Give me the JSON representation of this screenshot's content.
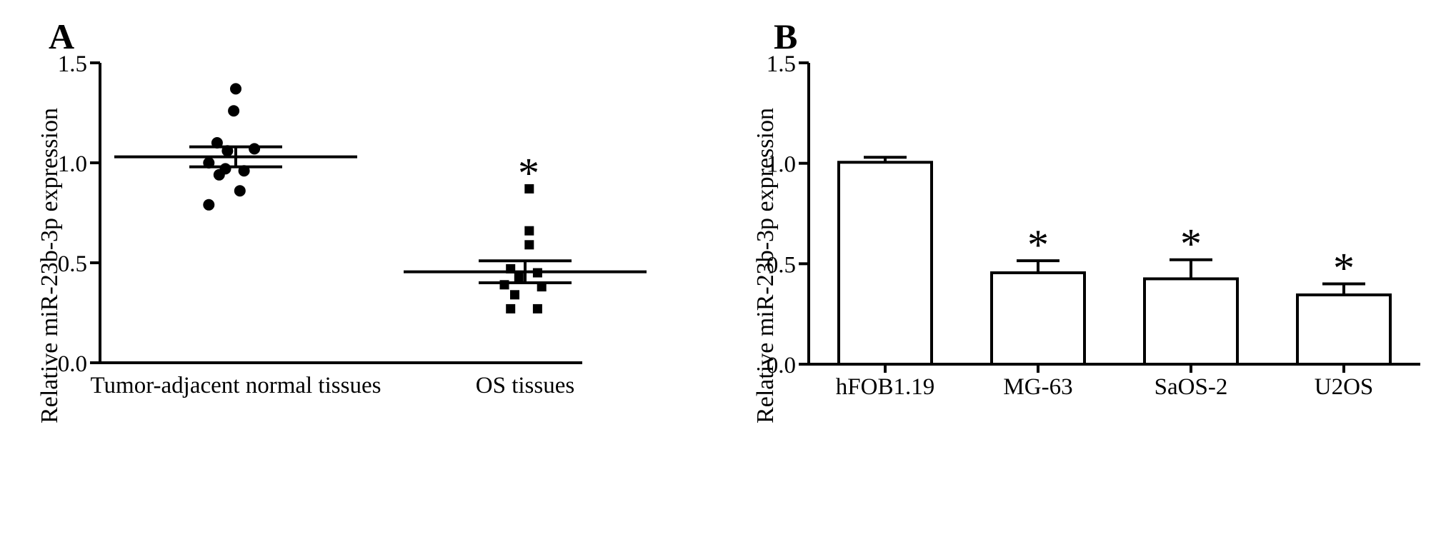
{
  "chart_data": [
    {
      "panel": "A",
      "type": "scatter",
      "ylabel": "Relative miR-23b-3p expression",
      "ylim": [
        0,
        1.5
      ],
      "yticks": [
        "0.0",
        "0.5",
        "1.0",
        "1.5"
      ],
      "categories": [
        "Tumor-adjacent normal tissues",
        "OS tissues"
      ],
      "groups": [
        {
          "category": "Tumor-adjacent normal tissues",
          "marker": "circle",
          "points": [
            {
              "dx": 0.0,
              "y": 1.37
            },
            {
              "dx": -0.01,
              "y": 1.26
            },
            {
              "dx": -0.09,
              "y": 1.1
            },
            {
              "dx": 0.09,
              "y": 1.07
            },
            {
              "dx": -0.04,
              "y": 1.06
            },
            {
              "dx": -0.13,
              "y": 1.0
            },
            {
              "dx": -0.05,
              "y": 0.97
            },
            {
              "dx": 0.04,
              "y": 0.96
            },
            {
              "dx": -0.08,
              "y": 0.94
            },
            {
              "dx": 0.02,
              "y": 0.86
            },
            {
              "dx": -0.13,
              "y": 0.79
            }
          ],
          "mean": 1.03,
          "sem": 0.05,
          "star": ""
        },
        {
          "category": "OS tissues",
          "marker": "square",
          "points": [
            {
              "dx": 0.02,
              "y": 0.87
            },
            {
              "dx": 0.02,
              "y": 0.66
            },
            {
              "dx": 0.02,
              "y": 0.59
            },
            {
              "dx": -0.07,
              "y": 0.47
            },
            {
              "dx": 0.06,
              "y": 0.45
            },
            {
              "dx": -0.03,
              "y": 0.43
            },
            {
              "dx": -0.1,
              "y": 0.39
            },
            {
              "dx": 0.08,
              "y": 0.38
            },
            {
              "dx": -0.05,
              "y": 0.34
            },
            {
              "dx": -0.07,
              "y": 0.27
            },
            {
              "dx": 0.06,
              "y": 0.27
            }
          ],
          "mean": 0.455,
          "sem": 0.055,
          "star": "*"
        }
      ]
    },
    {
      "panel": "B",
      "type": "bar",
      "ylabel": "Relative miR-23b-3p expression",
      "ylim": [
        0,
        1.5
      ],
      "yticks": [
        "0.0",
        "0.5",
        "1.0",
        "1.5"
      ],
      "categories": [
        "hFOB1.19",
        "MG-63",
        "SaOS-2",
        "U2OS"
      ],
      "values": [
        1.005,
        0.455,
        0.425,
        0.345
      ],
      "errors": [
        0.025,
        0.06,
        0.095,
        0.055
      ],
      "stars": [
        "",
        "*",
        "*",
        "*"
      ]
    }
  ]
}
